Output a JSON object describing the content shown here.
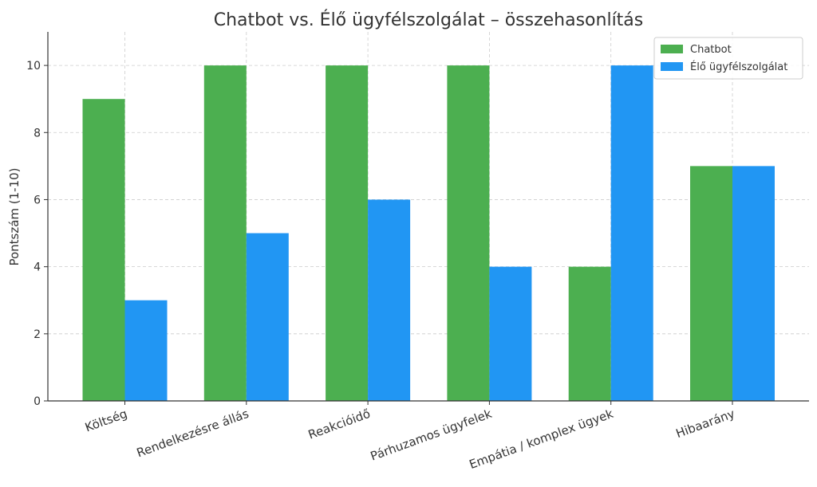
{
  "chart_data": {
    "type": "bar",
    "title": "Chatbot vs. Élő ügyfélszolgálat – összehasonlítás",
    "xlabel": "",
    "ylabel": "Pontszám (1-10)",
    "categories": [
      "Költség",
      "Rendelkezésre állás",
      "Reakcióidő",
      "Párhuzamos ügyfelek",
      "Empátia / komplex ügyek",
      "Hibaarány"
    ],
    "series": [
      {
        "name": "Chatbot",
        "values": [
          9,
          10,
          10,
          10,
          4,
          7
        ],
        "color": "#4caf50"
      },
      {
        "name": "Élő ügyfélszolgálat",
        "values": [
          3,
          5,
          6,
          4,
          10,
          7
        ],
        "color": "#2196f3"
      }
    ],
    "ylim": [
      0,
      11
    ],
    "yticks": [
      0,
      2,
      4,
      6,
      8,
      10
    ],
    "grid": true,
    "legend_position": "top-right"
  }
}
